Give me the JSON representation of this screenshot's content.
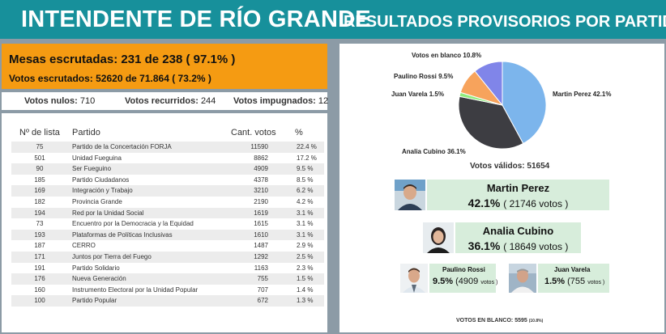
{
  "header": {
    "title_left": "INTENDENTE DE RÍO GRANDE",
    "title_right": "RESULTADOS PROVISORIOS POR PARTIDO"
  },
  "mesas": {
    "line1": "Mesas escrutadas: 231 de 238 ( 97.1% )",
    "line2": "Votos escrutados: 52620 de 71.864 ( 73.2% )"
  },
  "votes_bar": {
    "nulos_label": "Votos nulos:",
    "nulos_value": "710",
    "recurridos_label": "Votos recurridos:",
    "recurridos_value": "244",
    "impugnados_label": "Votos impugnados:",
    "impugnados_value": "12"
  },
  "table": {
    "headers": {
      "lista": "Nº de lista",
      "partido": "Partido",
      "cant": "Cant. votos",
      "pct": "%"
    },
    "rows": [
      {
        "lista": "75",
        "partido": "Partido de la Concertación FORJA",
        "cant": "11590",
        "pct": "22.4 %"
      },
      {
        "lista": "501",
        "partido": "Unidad Fueguina",
        "cant": "8862",
        "pct": "17.2 %"
      },
      {
        "lista": "90",
        "partido": "Ser Fueguino",
        "cant": "4909",
        "pct": "9.5 %"
      },
      {
        "lista": "185",
        "partido": "Partido Ciudadanos",
        "cant": "4378",
        "pct": "8.5 %"
      },
      {
        "lista": "169",
        "partido": "Integración y Trabajo",
        "cant": "3210",
        "pct": "6.2 %"
      },
      {
        "lista": "182",
        "partido": "Provincia Grande",
        "cant": "2190",
        "pct": "4.2 %"
      },
      {
        "lista": "194",
        "partido": "Red por la Unidad Social",
        "cant": "1619",
        "pct": "3.1 %"
      },
      {
        "lista": "73",
        "partido": "Encuentro por la Democracia y la Equidad",
        "cant": "1615",
        "pct": "3.1 %"
      },
      {
        "lista": "193",
        "partido": "Plataformas de Políticas Inclusivas",
        "cant": "1610",
        "pct": "3.1 %"
      },
      {
        "lista": "187",
        "partido": "CERRO",
        "cant": "1487",
        "pct": "2.9 %"
      },
      {
        "lista": "171",
        "partido": "Juntos por Tierra del Fuego",
        "cant": "1292",
        "pct": "2.5 %"
      },
      {
        "lista": "191",
        "partido": "Partido Solidario",
        "cant": "1163",
        "pct": "2.3 %"
      },
      {
        "lista": "176",
        "partido": "Nueva Generación",
        "cant": "755",
        "pct": "1.5 %"
      },
      {
        "lista": "160",
        "partido": "Instrumento Electoral por la Unidad Popular",
        "cant": "707",
        "pct": "1.4 %"
      },
      {
        "lista": "100",
        "partido": "Partido Popular",
        "cant": "672",
        "pct": "1.3 %"
      }
    ]
  },
  "chart_data": {
    "type": "pie",
    "slices": [
      {
        "label": "Martin Perez 42.1%",
        "value": 42.1,
        "color": "#7cb5ec"
      },
      {
        "label": "Analia Cubino 36.1%",
        "value": 36.1,
        "color": "#3d3d42"
      },
      {
        "label": "Juan Varela 1.5%",
        "value": 1.5,
        "color": "#90ed7d"
      },
      {
        "label": "Paulino Rossi 9.5%",
        "value": 9.5,
        "color": "#f7a35c"
      },
      {
        "label": "Votos en blanco 10.8%",
        "value": 10.8,
        "color": "#8085e9"
      }
    ]
  },
  "validos": "Votos válidos: 51654",
  "candidates": {
    "perez": {
      "name": "Martin Perez",
      "pct": "42.1%",
      "votes": "( 21746 votos )"
    },
    "cubino": {
      "name": "Analia Cubino",
      "pct": "36.1%",
      "votes": "( 18649 votos )"
    },
    "rossi": {
      "name": "Paulino Rossi",
      "pct": "9.5%",
      "votes_num": "(4909",
      "votes_word": "votos )"
    },
    "varela": {
      "name": "Juan Varela",
      "pct": "1.5%",
      "votes_num": "(755",
      "votes_word": "votos )"
    }
  },
  "blanco": {
    "label": "VOTOS EN BLANCO: 5595",
    "pct": "(10.8%)"
  }
}
